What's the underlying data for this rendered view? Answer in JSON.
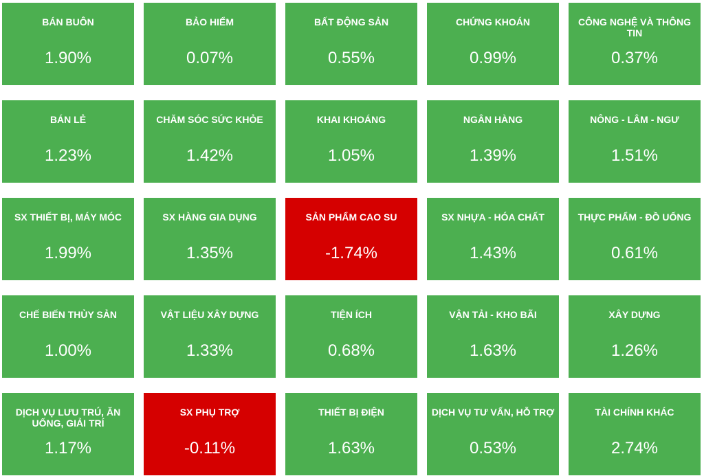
{
  "colors": {
    "up": "#4caf50",
    "down": "#d50000",
    "text": "#ffffff"
  },
  "sectors": [
    {
      "name": "BÁN BUÔN",
      "change": "1.90%",
      "direction": "up"
    },
    {
      "name": "BẢO HIỂM",
      "change": "0.07%",
      "direction": "up"
    },
    {
      "name": "BẤT ĐỘNG SẢN",
      "change": "0.55%",
      "direction": "up"
    },
    {
      "name": "CHỨNG KHOÁN",
      "change": "0.99%",
      "direction": "up"
    },
    {
      "name": "CÔNG NGHỆ VÀ THÔNG TIN",
      "change": "0.37%",
      "direction": "up"
    },
    {
      "name": "BÁN LẺ",
      "change": "1.23%",
      "direction": "up"
    },
    {
      "name": "CHĂM SÓC SỨC KHỎE",
      "change": "1.42%",
      "direction": "up"
    },
    {
      "name": "KHAI KHOÁNG",
      "change": "1.05%",
      "direction": "up"
    },
    {
      "name": "NGÂN HÀNG",
      "change": "1.39%",
      "direction": "up"
    },
    {
      "name": "NÔNG - LÂM - NGƯ",
      "change": "1.51%",
      "direction": "up"
    },
    {
      "name": "SX THIẾT BỊ, MÁY MÓC",
      "change": "1.99%",
      "direction": "up"
    },
    {
      "name": "SX HÀNG GIA DỤNG",
      "change": "1.35%",
      "direction": "up"
    },
    {
      "name": "SẢN PHẨM CAO SU",
      "change": "-1.74%",
      "direction": "down"
    },
    {
      "name": "SX NHỰA - HÓA CHẤT",
      "change": "1.43%",
      "direction": "up"
    },
    {
      "name": "THỰC PHẨM - ĐỒ UỐNG",
      "change": "0.61%",
      "direction": "up"
    },
    {
      "name": "CHẾ BIẾN THỦY SẢN",
      "change": "1.00%",
      "direction": "up"
    },
    {
      "name": "VẬT LIỆU XÂY DỰNG",
      "change": "1.33%",
      "direction": "up"
    },
    {
      "name": "TIỆN ÍCH",
      "change": "0.68%",
      "direction": "up"
    },
    {
      "name": "VẬN TẢI - KHO BÃI",
      "change": "1.63%",
      "direction": "up"
    },
    {
      "name": "XÂY DỰNG",
      "change": "1.26%",
      "direction": "up"
    },
    {
      "name": "DỊCH VỤ LƯU TRÚ, ĂN UỐNG, GIẢI TRÍ",
      "change": "1.17%",
      "direction": "up"
    },
    {
      "name": "SX PHỤ TRỢ",
      "change": "-0.11%",
      "direction": "down"
    },
    {
      "name": "THIẾT BỊ ĐIỆN",
      "change": "1.63%",
      "direction": "up"
    },
    {
      "name": "DỊCH VỤ TƯ VẤN, HỖ TRỢ",
      "change": "0.53%",
      "direction": "up"
    },
    {
      "name": "TÀI CHÍNH KHÁC",
      "change": "2.74%",
      "direction": "up"
    }
  ]
}
